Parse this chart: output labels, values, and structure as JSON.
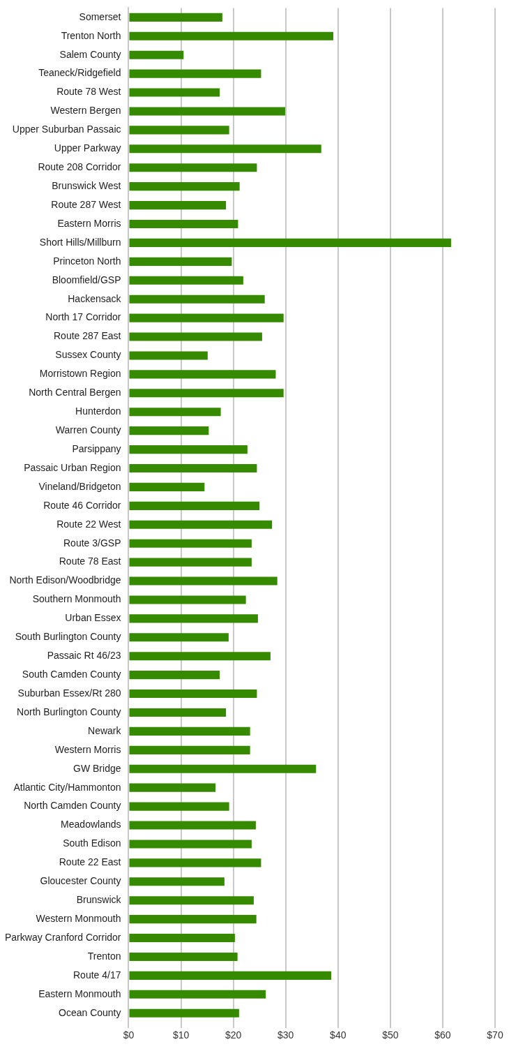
{
  "chart_data": {
    "type": "bar",
    "orientation": "horizontal",
    "color": "#368a00",
    "grid": "x",
    "legend": false,
    "categories": [
      "Somerset",
      "Trenton North",
      "Salem County",
      "Teaneck/Ridgefield",
      "Route 78 West",
      "Western Bergen",
      "Upper Suburban Passaic",
      "Upper Parkway",
      "Route 208 Corridor",
      "Brunswick West",
      "Route 287 West",
      "Eastern Morris",
      "Short Hills/Millburn",
      "Princeton North",
      "Bloomfield/GSP",
      "Hackensack",
      "North 17 Corridor",
      "Route 287 East",
      "Sussex County",
      "Morristown Region",
      "North Central Bergen",
      "Hunterdon",
      "Warren County",
      "Parsippany",
      "Passaic Urban Region",
      "Vineland/Bridgeton",
      "Route 46 Corridor",
      "Route 22 West",
      "Route 3/GSP",
      "Route 78 East",
      "North Edison/Woodbridge",
      "Southern Monmouth",
      "Urban Essex",
      "South Burlington County",
      "Passaic Rt 46/23",
      "South Camden County",
      "Suburban Essex/Rt 280",
      "North Burlington County",
      "Newark",
      "Western Morris",
      "GW Bridge",
      "Atlantic City/Hammonton",
      "North Camden County",
      "Meadowlands",
      "South Edison",
      "Route 22 East",
      "Gloucester County",
      "Brunswick",
      "Western Monmouth",
      "Parkway Cranford Corridor",
      "Trenton",
      "Route 4/17",
      "Eastern Monmouth",
      "Ocean County"
    ],
    "values": [
      17.9,
      39.1,
      10.5,
      25.3,
      17.4,
      29.9,
      19.2,
      36.8,
      24.5,
      21.2,
      18.6,
      20.9,
      61.6,
      19.7,
      21.9,
      26.0,
      29.6,
      25.5,
      15.1,
      28.1,
      29.6,
      17.6,
      15.3,
      22.7,
      24.5,
      14.5,
      25.0,
      27.4,
      23.5,
      23.5,
      28.4,
      22.4,
      24.7,
      19.1,
      27.1,
      17.4,
      24.5,
      18.6,
      23.2,
      23.2,
      35.8,
      16.6,
      19.2,
      24.3,
      23.5,
      25.3,
      18.3,
      23.9,
      24.4,
      20.3,
      20.8,
      38.7,
      26.2,
      21.1
    ],
    "xlim": [
      0,
      70
    ],
    "xticks": [
      {
        "value": 0,
        "label": "$0"
      },
      {
        "value": 10,
        "label": "$10"
      },
      {
        "value": 20,
        "label": "$20"
      },
      {
        "value": 30,
        "label": "$30"
      },
      {
        "value": 40,
        "label": "$40"
      },
      {
        "value": 50,
        "label": "$50"
      },
      {
        "value": 60,
        "label": "$60"
      },
      {
        "value": 70,
        "label": "$70"
      }
    ]
  }
}
